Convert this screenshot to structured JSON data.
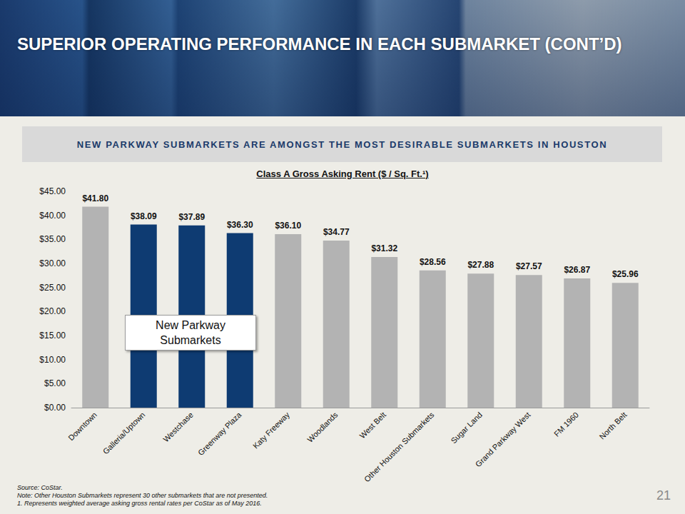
{
  "header": {
    "title": "SUPERIOR OPERATING PERFORMANCE IN EACH SUBMARKET (CONT’D)"
  },
  "banner": "NEW PARKWAY SUBMARKETS ARE AMONGST THE MOST DESIRABLE SUBMARKETS IN HOUSTON",
  "chart_data": {
    "type": "bar",
    "title": "Class A Gross Asking Rent ($ / Sq. Ft.¹)",
    "categories": [
      "Downtown",
      "Galleria/Uptown",
      "Westchase",
      "Greenway Plaza",
      "Katy Freeway",
      "Woodlands",
      "West Belt",
      "Other Houston Submarkets",
      "Sugar Land",
      "Grand Parkway West",
      "FM 1960",
      "North Belt"
    ],
    "values": [
      41.8,
      38.09,
      37.89,
      36.3,
      36.1,
      34.77,
      31.32,
      28.56,
      27.88,
      27.57,
      26.87,
      25.96
    ],
    "value_labels": [
      "$41.80",
      "$38.09",
      "$37.89",
      "$36.30",
      "$36.10",
      "$34.77",
      "$31.32",
      "$28.56",
      "$27.88",
      "$27.57",
      "$26.87",
      "$25.96"
    ],
    "colors": [
      "#B3B3B3",
      "#0E3B72",
      "#0E3B72",
      "#0E3B72",
      "#B3B3B3",
      "#B3B3B3",
      "#B3B3B3",
      "#B3B3B3",
      "#B3B3B3",
      "#B3B3B3",
      "#B3B3B3",
      "#B3B3B3"
    ],
    "ylim": [
      0,
      45
    ],
    "yticks": [
      {
        "value": 0,
        "label": "$0.00"
      },
      {
        "value": 5,
        "label": "$5.00"
      },
      {
        "value": 10,
        "label": "$10.00"
      },
      {
        "value": 15,
        "label": "$15.00"
      },
      {
        "value": 20,
        "label": "$20.00"
      },
      {
        "value": 25,
        "label": "$25.00"
      },
      {
        "value": 30,
        "label": "$30.00"
      },
      {
        "value": 35,
        "label": "$35.00"
      },
      {
        "value": 40,
        "label": "$40.00"
      },
      {
        "value": 45,
        "label": "$45.00"
      }
    ],
    "grid": false,
    "data_labels": true,
    "annotations": [
      "New Parkway Submarkets"
    ]
  },
  "footnotes": [
    "Source: CoStar.",
    "Note: Other Houston Submarkets represent 30 other submarkets that are not presented.",
    "1.  Represents weighted average asking gross rental rates per CoStar as of May 2016."
  ],
  "page_number": "21"
}
